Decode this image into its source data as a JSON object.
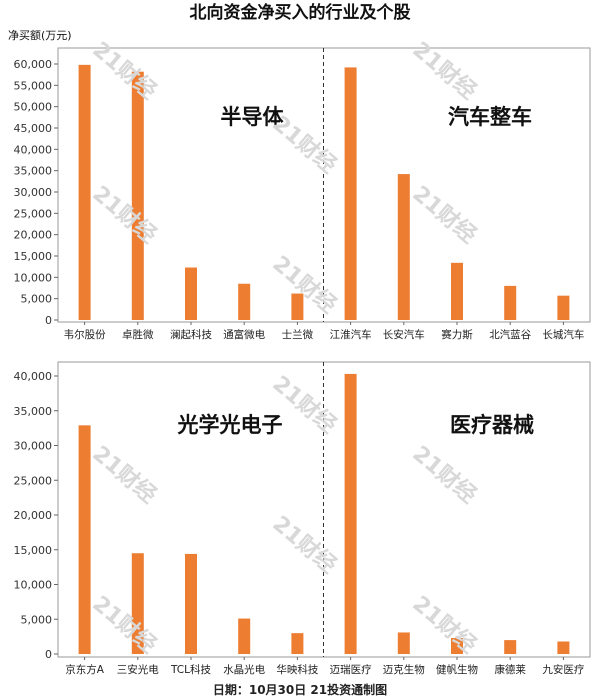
{
  "chart_data": {
    "type": "bar",
    "title": "北向资金净买入的行业及个股",
    "ylabel": "净买额(万元)",
    "footer": "日期：10月30日  21投资通制图",
    "watermark": "21财经",
    "bar_color": "#ED7D31",
    "grid": false,
    "panels": [
      {
        "ylim": [
          0,
          62000
        ],
        "yticks": [
          0,
          5000,
          10000,
          15000,
          20000,
          25000,
          30000,
          35000,
          40000,
          45000,
          50000,
          55000,
          60000
        ],
        "ytick_labels": [
          "0",
          "5,000",
          "10,000",
          "15,000",
          "20,000",
          "25,000",
          "30,000",
          "35,000",
          "40,000",
          "45,000",
          "50,000",
          "55,000",
          "60,000"
        ],
        "groups": [
          {
            "name": "半导体",
            "categories": [
              "韦尔股份",
              "卓胜微",
              "澜起科技",
              "通富微电",
              "士兰微"
            ],
            "values": [
              59800,
              58200,
              12300,
              8500,
              6200
            ]
          },
          {
            "name": "汽车整车",
            "categories": [
              "江淮汽车",
              "长安汽车",
              "赛力斯",
              "北汽蓝谷",
              "长城汽车"
            ],
            "values": [
              59200,
              34200,
              13400,
              8000,
              5700
            ]
          }
        ]
      },
      {
        "ylim": [
          0,
          41000
        ],
        "yticks": [
          0,
          5000,
          10000,
          15000,
          20000,
          25000,
          30000,
          35000,
          40000
        ],
        "ytick_labels": [
          "0",
          "5,000",
          "10,000",
          "15,000",
          "20,000",
          "25,000",
          "30,000",
          "35,000",
          "40,000"
        ],
        "groups": [
          {
            "name": "光学光电子",
            "categories": [
              "京东方A",
              "三安光电",
              "TCL科技",
              "水晶光电",
              "华映科技"
            ],
            "values": [
              32900,
              14500,
              14400,
              5100,
              3000
            ]
          },
          {
            "name": "医疗器械",
            "categories": [
              "迈瑞医疗",
              "迈克生物",
              "健帆生物",
              "康德莱",
              "九安医疗"
            ],
            "values": [
              40300,
              3100,
              2300,
              2000,
              1800
            ]
          }
        ]
      }
    ]
  }
}
